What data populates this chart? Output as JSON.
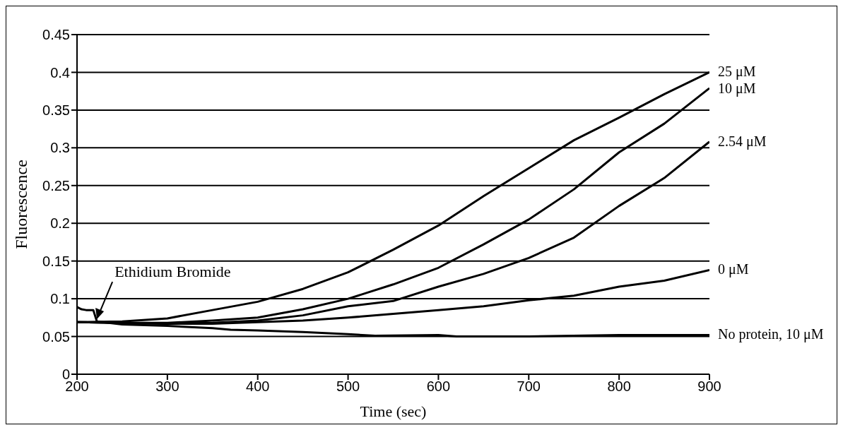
{
  "chart_data": {
    "type": "line",
    "xlabel": "Time (sec)",
    "ylabel": "Fluorescence",
    "xlim": [
      200,
      900
    ],
    "xticks": [
      200,
      300,
      400,
      500,
      600,
      700,
      800,
      900
    ],
    "ylim": [
      0,
      0.45
    ],
    "yticks": [
      0,
      0.05,
      0.1,
      0.15,
      0.2,
      0.25,
      0.3,
      0.35,
      0.4,
      0.45
    ],
    "grid": "y",
    "marker": "none",
    "line_style": "solid",
    "annotations": [
      {
        "text": "Ethidium Bromide",
        "x": 222,
        "y": 0.071
      }
    ],
    "series": [
      {
        "name": "25 μM",
        "color": "#000000",
        "x": [
          200,
          250,
          300,
          350,
          400,
          450,
          500,
          550,
          600,
          650,
          700,
          750,
          800,
          850,
          900
        ],
        "values": [
          0.069,
          0.07,
          0.074,
          0.085,
          0.096,
          0.113,
          0.135,
          0.165,
          0.197,
          0.236,
          0.273,
          0.31,
          0.34,
          0.371,
          0.4
        ]
      },
      {
        "name": "10 μM",
        "color": "#000000",
        "x": [
          200,
          250,
          300,
          350,
          400,
          450,
          500,
          550,
          600,
          650,
          700,
          750,
          800,
          850,
          900
        ],
        "values": [
          0.069,
          0.068,
          0.068,
          0.071,
          0.075,
          0.086,
          0.1,
          0.119,
          0.141,
          0.172,
          0.205,
          0.245,
          0.294,
          0.332,
          0.379
        ]
      },
      {
        "name": "2.54 μM",
        "color": "#000000",
        "x": [
          200,
          250,
          300,
          350,
          400,
          450,
          500,
          550,
          600,
          650,
          700,
          750,
          800,
          850,
          900
        ],
        "values": [
          0.069,
          0.068,
          0.067,
          0.068,
          0.071,
          0.078,
          0.09,
          0.097,
          0.116,
          0.133,
          0.154,
          0.181,
          0.223,
          0.26,
          0.308
        ]
      },
      {
        "name": "0 μM",
        "color": "#000000",
        "x": [
          200,
          250,
          300,
          350,
          400,
          450,
          500,
          550,
          600,
          650,
          700,
          750,
          800,
          850,
          900
        ],
        "values": [
          0.069,
          0.068,
          0.067,
          0.067,
          0.069,
          0.071,
          0.075,
          0.08,
          0.085,
          0.09,
          0.098,
          0.104,
          0.116,
          0.124,
          0.138
        ]
      },
      {
        "name": "No protein, 10 μM",
        "color": "#000000",
        "x": [
          200,
          205,
          210,
          218,
          222,
          250,
          300,
          350,
          370,
          400,
          450,
          500,
          530,
          600,
          620,
          700,
          800,
          850,
          900
        ],
        "values": [
          0.089,
          0.086,
          0.085,
          0.085,
          0.07,
          0.066,
          0.064,
          0.061,
          0.059,
          0.058,
          0.056,
          0.053,
          0.051,
          0.052,
          0.05,
          0.05,
          0.052,
          0.052,
          0.052
        ]
      }
    ]
  }
}
